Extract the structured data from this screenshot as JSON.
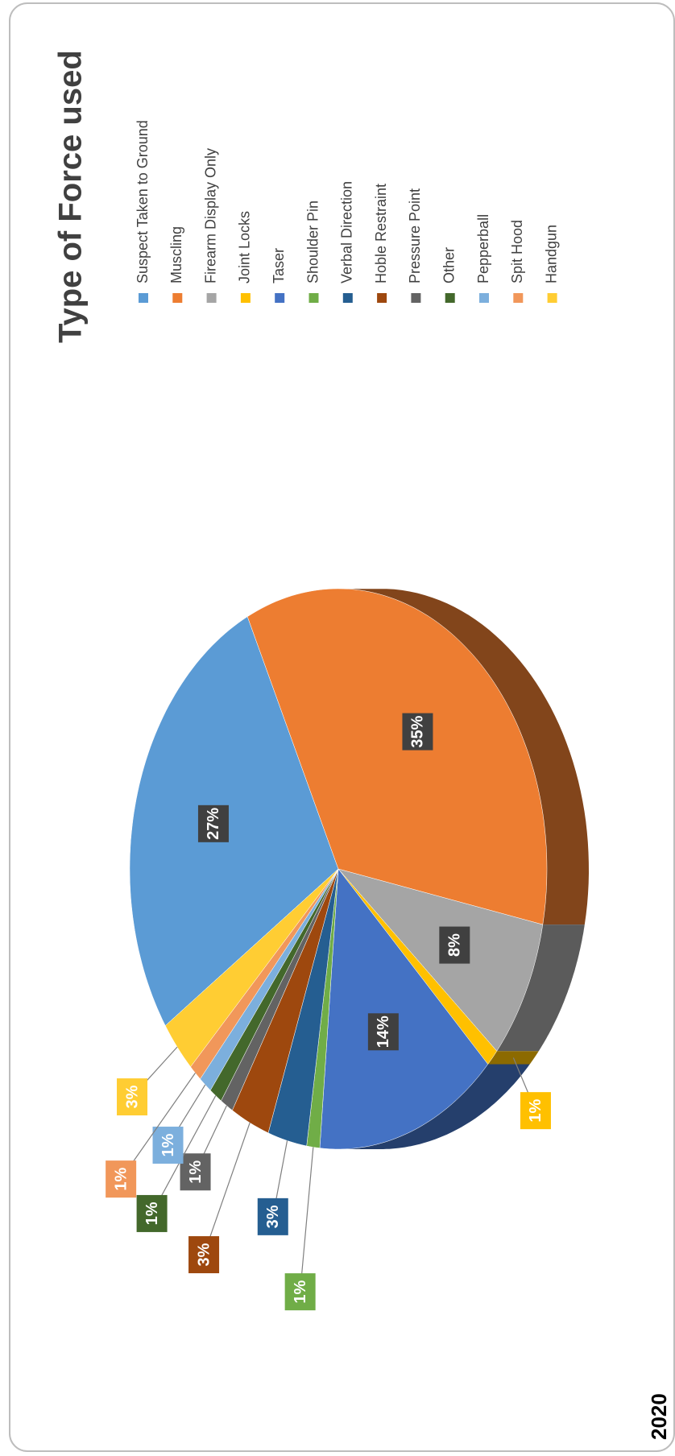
{
  "chart_data": {
    "type": "pie",
    "title": "Type of Force used",
    "subtitle": "2020",
    "categories": [
      "Suspect Taken to Ground",
      "Muscling",
      "Firearm Display Only",
      "Joint Locks",
      "Taser",
      "Shoulder Pin",
      "Verbal Direction",
      "Hoble Restraint",
      "Pressure Point",
      "Other",
      "Pepperball",
      "Spit Hood",
      "Handgun"
    ],
    "values": [
      27,
      35,
      8,
      1,
      14,
      1,
      3,
      3,
      1,
      1,
      1,
      1,
      3
    ],
    "value_labels": [
      "27%",
      "35%",
      "8%",
      "1%",
      "14%",
      "1%",
      "3%",
      "3%",
      "1%",
      "1%",
      "1%",
      "1%",
      "3%"
    ],
    "colors": [
      "#5b9bd5",
      "#ed7d31",
      "#a5a5a5",
      "#ffc000",
      "#4472c4",
      "#70ad47",
      "#255e91",
      "#9e480e",
      "#636363",
      "#43682b",
      "#7cafdd",
      "#f1975a",
      "#ffcd33"
    ],
    "legend": "right"
  }
}
